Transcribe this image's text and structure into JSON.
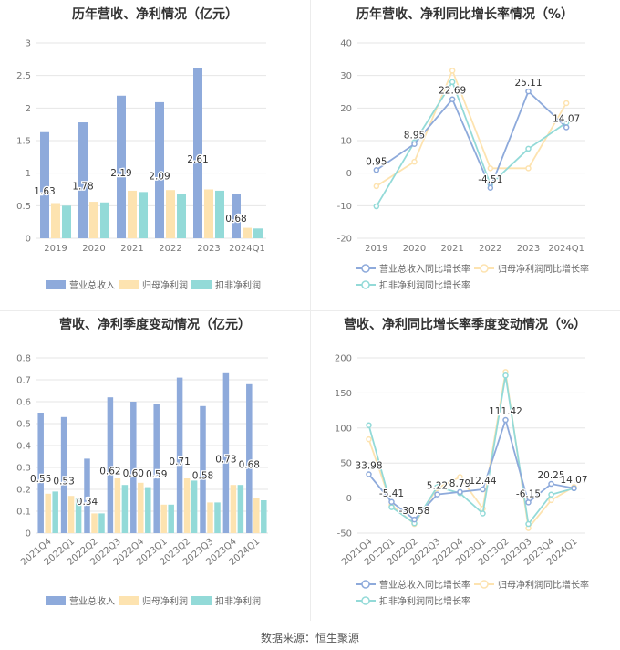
{
  "footer": "数据来源：恒生聚源",
  "colors": {
    "revenue": "#8eaadb",
    "net_profit": "#fde3b0",
    "deducted_profit": "#93dad8",
    "grid": "#e6e6e6",
    "text": "#666666",
    "title": "#333333"
  },
  "chart_data": [
    {
      "type": "bar",
      "title": "历年营收、净利情况（亿元）",
      "categories": [
        "2019",
        "2020",
        "2021",
        "2022",
        "2023",
        "2024Q1"
      ],
      "ylim": [
        0,
        3
      ],
      "yticks": [
        "0",
        "0.5",
        "1",
        "1.5",
        "2",
        "2.5",
        "3"
      ],
      "legend_position": "bottom",
      "series": [
        {
          "name": "营业总收入",
          "values": [
            1.63,
            1.78,
            2.19,
            2.09,
            2.61,
            0.68
          ],
          "labels": [
            "1.63",
            "1.78",
            "2.19",
            "2.09",
            "2.61",
            "0.68"
          ]
        },
        {
          "name": "归母净利润",
          "values": [
            0.54,
            0.56,
            0.73,
            0.74,
            0.75,
            0.16
          ]
        },
        {
          "name": "扣非净利润",
          "values": [
            0.5,
            0.55,
            0.71,
            0.68,
            0.73,
            0.15
          ]
        }
      ]
    },
    {
      "type": "line",
      "title": "历年营收、净利同比增长率情况（%）",
      "categories": [
        "2019",
        "2020",
        "2021",
        "2022",
        "2023",
        "2024Q1"
      ],
      "ylim": [
        -20,
        40
      ],
      "yticks": [
        "-20",
        "-10",
        "0",
        "10",
        "20",
        "30",
        "40"
      ],
      "legend_position": "bottom",
      "series": [
        {
          "name": "营业总收入同比增长率",
          "values": [
            0.95,
            8.95,
            22.69,
            -4.51,
            25.11,
            14.07
          ],
          "labels": [
            "0.95",
            "8.95",
            "22.69",
            "-4.51",
            "25.11",
            "14.07"
          ]
        },
        {
          "name": "归母净利润同比增长率",
          "values": [
            -4,
            3.5,
            31.5,
            1.5,
            1.5,
            21.5
          ]
        },
        {
          "name": "扣非净利润同比增长率",
          "values": [
            -10.2,
            9.5,
            28,
            -3.5,
            7.5,
            15.5
          ]
        }
      ]
    },
    {
      "type": "bar",
      "title": "营收、净利季度变动情况（亿元）",
      "categories": [
        "2021Q4",
        "2022Q1",
        "2022Q2",
        "2022Q3",
        "2022Q4",
        "2023Q1",
        "2023Q2",
        "2023Q3",
        "2023Q4",
        "2024Q1"
      ],
      "ylim": [
        0,
        0.8
      ],
      "yticks": [
        "0",
        "0.1",
        "0.2",
        "0.3",
        "0.4",
        "0.5",
        "0.6",
        "0.7",
        "0.8"
      ],
      "legend_position": "bottom",
      "series": [
        {
          "name": "营业总收入",
          "values": [
            0.55,
            0.53,
            0.34,
            0.62,
            0.6,
            0.59,
            0.71,
            0.58,
            0.73,
            0.68
          ],
          "labels": [
            "0.55",
            "0.53",
            "0.34",
            "0.62",
            "0.60",
            "0.59",
            "0.71",
            "0.58",
            "0.73",
            "0.68"
          ]
        },
        {
          "name": "归母净利润",
          "values": [
            0.18,
            0.17,
            0.09,
            0.25,
            0.23,
            0.13,
            0.25,
            0.14,
            0.22,
            0.16
          ]
        },
        {
          "name": "扣非净利润",
          "values": [
            0.19,
            0.16,
            0.09,
            0.22,
            0.21,
            0.13,
            0.24,
            0.14,
            0.22,
            0.15
          ]
        }
      ]
    },
    {
      "type": "line",
      "title": "营收、净利同比增长率季度变动情况（%）",
      "categories": [
        "2021Q4",
        "2022Q1",
        "2022Q2",
        "2022Q3",
        "2022Q4",
        "2023Q1",
        "2023Q2",
        "2023Q3",
        "2023Q4",
        "2024Q1"
      ],
      "ylim": [
        -50,
        200
      ],
      "yticks": [
        "-50",
        "0",
        "50",
        "100",
        "150",
        "200"
      ],
      "legend_position": "bottom",
      "series": [
        {
          "name": "营业总收入同比增长率",
          "values": [
            33.98,
            -5.41,
            -30.58,
            5.22,
            8.79,
            12.44,
            111.42,
            -6.15,
            20.25,
            14.07
          ],
          "labels": [
            "33.98",
            "-5.41",
            "-30.58",
            "5.22",
            "8.79",
            "12.44",
            "111.42",
            "-6.15",
            "20.25",
            "14.07"
          ]
        },
        {
          "name": "归母净利润同比增长率",
          "values": [
            84,
            -10,
            -37,
            14,
            30,
            -15,
            180,
            -43,
            -3,
            16
          ]
        },
        {
          "name": "扣非净利润同比增长率",
          "values": [
            104,
            -13,
            -36,
            16,
            7,
            -22,
            175,
            -37,
            5,
            14
          ]
        }
      ]
    }
  ]
}
